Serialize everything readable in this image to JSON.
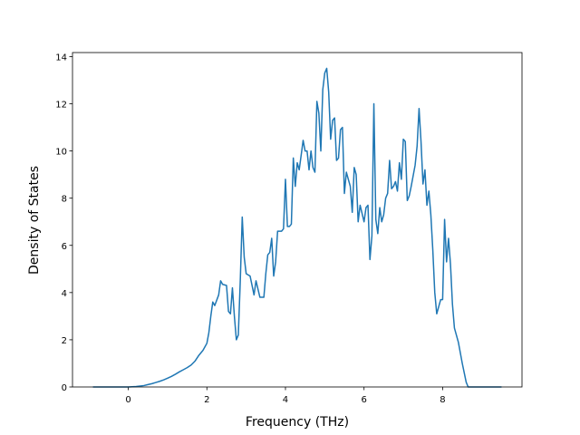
{
  "chart_data": {
    "type": "line",
    "x_label": "Frequency (THz)",
    "y_label": "Density of States",
    "x": [
      -0.9,
      0.0,
      0.1,
      0.2,
      0.3,
      0.4,
      0.5,
      0.6,
      0.7,
      0.8,
      0.9,
      1.0,
      1.1,
      1.2,
      1.3,
      1.4,
      1.5,
      1.6,
      1.7,
      1.8,
      1.9,
      2.0,
      2.05,
      2.1,
      2.15,
      2.2,
      2.3,
      2.35,
      2.4,
      2.5,
      2.55,
      2.6,
      2.65,
      2.7,
      2.75,
      2.8,
      2.85,
      2.9,
      2.95,
      3.0,
      3.1,
      3.2,
      3.25,
      3.35,
      3.45,
      3.5,
      3.55,
      3.6,
      3.65,
      3.7,
      3.75,
      3.8,
      3.9,
      3.95,
      4.0,
      4.05,
      4.1,
      4.15,
      4.2,
      4.25,
      4.3,
      4.35,
      4.45,
      4.5,
      4.55,
      4.6,
      4.65,
      4.7,
      4.75,
      4.8,
      4.85,
      4.9,
      4.95,
      5.0,
      5.05,
      5.1,
      5.15,
      5.2,
      5.25,
      5.3,
      5.35,
      5.4,
      5.45,
      5.5,
      5.55,
      5.65,
      5.7,
      5.75,
      5.8,
      5.85,
      5.9,
      6.0,
      6.05,
      6.1,
      6.15,
      6.2,
      6.25,
      6.3,
      6.35,
      6.4,
      6.45,
      6.5,
      6.55,
      6.6,
      6.65,
      6.7,
      6.75,
      6.8,
      6.85,
      6.9,
      6.95,
      7.0,
      7.05,
      7.1,
      7.15,
      7.2,
      7.3,
      7.35,
      7.4,
      7.45,
      7.5,
      7.55,
      7.6,
      7.65,
      7.7,
      7.75,
      7.8,
      7.85,
      7.9,
      7.95,
      8.0,
      8.05,
      8.1,
      8.15,
      8.2,
      8.25,
      8.3,
      8.4,
      8.5,
      8.6,
      8.65,
      9.5
    ],
    "values": [
      0,
      0,
      0.01,
      0.02,
      0.04,
      0.06,
      0.1,
      0.14,
      0.19,
      0.24,
      0.3,
      0.37,
      0.45,
      0.54,
      0.64,
      0.73,
      0.82,
      0.93,
      1.1,
      1.35,
      1.55,
      1.85,
      2.3,
      3.0,
      3.6,
      3.45,
      3.9,
      4.5,
      4.35,
      4.3,
      3.2,
      3.1,
      4.2,
      3.0,
      2.0,
      2.2,
      4.5,
      7.2,
      5.5,
      4.8,
      4.7,
      3.9,
      4.5,
      3.8,
      3.8,
      4.8,
      5.6,
      5.7,
      6.3,
      4.7,
      5.3,
      6.6,
      6.6,
      6.7,
      8.8,
      6.8,
      6.8,
      6.9,
      9.7,
      8.5,
      9.5,
      9.2,
      10.45,
      10.0,
      10.0,
      9.2,
      10.0,
      9.3,
      9.1,
      12.1,
      11.6,
      10.0,
      12.6,
      13.3,
      13.5,
      12.5,
      10.5,
      11.3,
      11.4,
      9.6,
      9.7,
      10.9,
      11.0,
      8.2,
      9.1,
      8.5,
      7.4,
      9.3,
      9.0,
      7.0,
      7.7,
      7.0,
      7.6,
      7.7,
      5.4,
      6.4,
      12.0,
      7.1,
      6.5,
      7.6,
      7.0,
      7.3,
      8.0,
      8.2,
      9.6,
      8.4,
      8.5,
      8.7,
      8.3,
      9.5,
      8.8,
      10.5,
      10.4,
      7.9,
      8.1,
      8.5,
      9.4,
      10.2,
      11.8,
      10.4,
      8.6,
      9.2,
      7.7,
      8.3,
      7.3,
      5.8,
      4.0,
      3.1,
      3.4,
      3.7,
      3.7,
      7.1,
      5.3,
      6.3,
      5.2,
      3.5,
      2.5,
      1.9,
      1.0,
      0.2,
      0,
      0
    ],
    "color": "#1f77b4",
    "xlim": [
      -1.42,
      10.02
    ],
    "ylim": [
      0,
      14.17
    ],
    "xticks": [
      0,
      2,
      4,
      6,
      8
    ],
    "yticks": [
      0,
      2,
      4,
      6,
      8,
      10,
      12,
      14
    ],
    "grid": false
  }
}
